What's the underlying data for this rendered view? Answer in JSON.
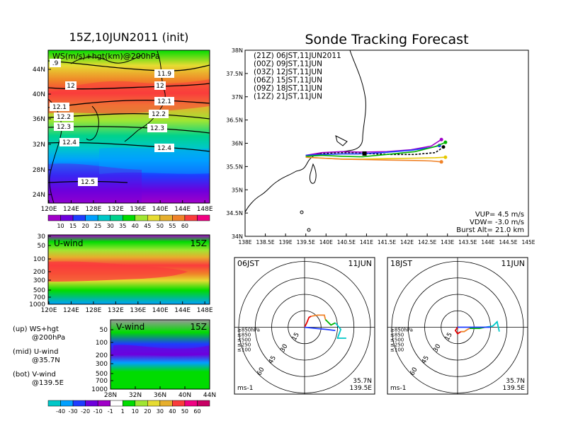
{
  "titles": {
    "left_title": "15Z,10JUN2011 (init)",
    "right_title": "Sonde Tracking Forecast"
  },
  "top_map": {
    "label": "WS(m/s)+hgt(km)@200hPa",
    "lat_ticks": [
      "44N",
      "40N",
      "36N",
      "32N",
      "28N",
      "24N"
    ],
    "lon_ticks": [
      "120E",
      "124E",
      "128E",
      "132E",
      "136E",
      "140E",
      "144E",
      "148E"
    ],
    "contour_labels": [
      "11.9",
      "12",
      "12",
      "12.1",
      "12.1",
      "12.2",
      "12.2",
      "12.3",
      "12.3",
      "12.4",
      "12.4",
      "12.5",
      ".9"
    ],
    "colorbar_labels": [
      "10",
      "15",
      "20",
      "25",
      "30",
      "35",
      "40",
      "45",
      "50",
      "55",
      "60"
    ],
    "colors": [
      "#a000c8",
      "#6e00dc",
      "#1e3cff",
      "#00a0ff",
      "#00c8c8",
      "#00d28c",
      "#00dc00",
      "#a0e632",
      "#e6dc32",
      "#e6af2d",
      "#f08228",
      "#fa3c3c",
      "#f00082"
    ]
  },
  "u_panel": {
    "label": "U-wind",
    "time": "15Z",
    "y_ticks": [
      "30",
      "50",
      "100",
      "200",
      "300",
      "500",
      "700",
      "1000"
    ],
    "x_ticks": [
      "120E",
      "124E",
      "128E",
      "132E",
      "136E",
      "140E",
      "144E",
      "148E"
    ]
  },
  "v_panel": {
    "label": "V-wind",
    "time": "15Z",
    "y_ticks": [
      "50",
      "100",
      "200",
      "300",
      "500",
      "700",
      "1000"
    ],
    "x_ticks": [
      "28N",
      "32N",
      "36N",
      "40N",
      "44N"
    ],
    "colorbar_labels": [
      "-40",
      "-30",
      "-20",
      "-10",
      "-1",
      "1",
      "10",
      "20",
      "30",
      "40",
      "50",
      "60"
    ]
  },
  "legend_text": {
    "line1": "(up) WS+hgt",
    "line2": "@200hPa",
    "line3": "(mid) U-wind",
    "line4": "@35.7N",
    "line5": "(bot) V-wind",
    "line6": "@139.5E"
  },
  "track_map": {
    "lat_ticks": [
      "38N",
      "37.5N",
      "37N",
      "36.5N",
      "36N",
      "35.5N",
      "35N",
      "34.5N",
      "34N"
    ],
    "lon_ticks": [
      "138E",
      "138.5E",
      "139E",
      "139.5E",
      "140E",
      "140.5E",
      "141E",
      "141.5E",
      "142E",
      "142.5E",
      "143E",
      "143.5E",
      "144E",
      "144.5E",
      "145E"
    ],
    "launches": [
      {
        "label": "(21Z)  06JST,11JUN2011",
        "color": "#000000"
      },
      {
        "label": "(00Z)  09JST,11JUN",
        "color": "#a000c8"
      },
      {
        "label": "(03Z)  12JST,11JUN",
        "color": "#1e3cff"
      },
      {
        "label": "(06Z)  15JST,11JUN",
        "color": "#00b400"
      },
      {
        "label": "(09Z)  18JST,11JUN",
        "color": "#e6c800"
      },
      {
        "label": "(12Z)  21JST,11JUN",
        "color": "#f08228"
      }
    ],
    "vup": "VUP= 4.5 m/s",
    "vdw": "VDW= -3.0 m/s",
    "burst": "Burst Alt= 21.0 km"
  },
  "hodo_left": {
    "time": "06JST",
    "date": "11JUN",
    "rings": [
      "15",
      "30",
      "45",
      "60"
    ],
    "unit": "ms-1",
    "lat": "35.7N",
    "lon": "139.5E",
    "levels": [
      "≥850hPa",
      "≤850",
      "≤500",
      "≤250",
      "≤100"
    ],
    "level_colors": [
      "#e60000",
      "#f08228",
      "#00b400",
      "#00c8c8",
      "#1e3cff"
    ]
  },
  "hodo_right": {
    "time": "18JST",
    "date": "11JUN",
    "rings": [
      "15",
      "30",
      "45",
      "60"
    ],
    "unit": "ms-1",
    "lat": "35.7N",
    "lon": "139.5E",
    "levels": [
      "≥850hPa",
      "≤850",
      "≤500",
      "≤250",
      "≤100"
    ],
    "level_colors": [
      "#e60000",
      "#f08228",
      "#00b400",
      "#00c8c8",
      "#1e3cff"
    ]
  },
  "chart_data": [
    {
      "type": "heatmap",
      "title": "15Z,10JUN2011 (init)",
      "label": "WS(m/s)+hgt(km)@200hPa",
      "xlim": [
        120,
        149
      ],
      "ylim": [
        22,
        48
      ],
      "colorbar_levels": [
        10,
        15,
        20,
        25,
        30,
        35,
        40,
        45,
        50,
        55,
        60
      ],
      "height_contours_km": [
        11.9,
        12.0,
        12.1,
        12.2,
        12.3,
        12.4,
        12.5
      ]
    },
    {
      "type": "heatmap",
      "label": "U-wind",
      "xlim": [
        120,
        149
      ],
      "y_pressure_hPa": [
        30,
        50,
        100,
        200,
        300,
        500,
        700,
        1000
      ]
    },
    {
      "type": "heatmap",
      "label": "V-wind",
      "xlim": [
        28,
        44
      ],
      "y_pressure_hPa": [
        50,
        100,
        200,
        300,
        500,
        700,
        1000
      ],
      "colorbar_levels": [
        -40,
        -30,
        -20,
        -10,
        -1,
        1,
        10,
        20,
        30,
        40,
        50,
        60
      ]
    },
    {
      "type": "line",
      "title": "Sonde Tracking Forecast",
      "xlim": [
        138,
        145
      ],
      "ylim": [
        34,
        38
      ],
      "series": [
        {
          "name": "(21Z)  06JST,11JUN2011",
          "x": [
            139.5,
            139.8,
            140.3,
            140.8,
            141.0,
            141.6,
            142.2,
            142.7,
            142.9
          ],
          "y": [
            35.72,
            35.77,
            35.8,
            35.8,
            35.78,
            35.76,
            35.76,
            35.8,
            35.92
          ]
        },
        {
          "name": "(00Z)  09JST,11JUN",
          "x": [
            139.5,
            139.9,
            140.4,
            140.9,
            141.5,
            142.1,
            142.6,
            142.85
          ],
          "y": [
            35.74,
            35.8,
            35.82,
            35.81,
            35.82,
            35.86,
            35.94,
            36.08
          ]
        },
        {
          "name": "(03Z)  12JST,11JUN",
          "x": [
            139.5,
            139.9,
            140.4,
            140.8,
            141.4,
            142.1,
            142.6,
            142.8
          ],
          "y": [
            35.74,
            35.76,
            35.77,
            35.77,
            35.8,
            35.85,
            35.91,
            35.95
          ]
        },
        {
          "name": "(06Z)  15JST,11JUN",
          "x": [
            139.5,
            139.9,
            140.4,
            140.9,
            141.5,
            142.2,
            142.7,
            142.95
          ],
          "y": [
            35.72,
            35.74,
            35.72,
            35.71,
            35.76,
            35.82,
            35.93,
            36.02
          ]
        },
        {
          "name": "(09Z)  18JST,11JUN",
          "x": [
            139.5,
            139.9,
            140.4,
            140.9,
            141.5,
            142.2,
            142.7,
            142.95
          ],
          "y": [
            35.7,
            35.68,
            35.66,
            35.66,
            35.67,
            35.68,
            35.69,
            35.7
          ]
        },
        {
          "name": "(12Z)  21JST,11JUN",
          "x": [
            139.5,
            139.9,
            140.4,
            140.9,
            141.5,
            142.2,
            142.6,
            142.85
          ],
          "y": [
            35.7,
            35.68,
            35.66,
            35.65,
            35.64,
            35.63,
            35.62,
            35.6
          ]
        }
      ]
    },
    {
      "type": "line",
      "title": "06JST 11JUN hodograph",
      "rings_ms": [
        15,
        30,
        45,
        60
      ],
      "series": [
        {
          "name": "≥850hPa",
          "u": [
            0,
            2,
            4,
            6
          ],
          "v": [
            0,
            4,
            9,
            10
          ]
        },
        {
          "name": "≤850",
          "u": [
            6,
            12,
            18,
            19
          ],
          "v": [
            10,
            11,
            11,
            7
          ]
        },
        {
          "name": "≤500",
          "u": [
            19,
            24,
            28
          ],
          "v": [
            7,
            2,
            4
          ]
        },
        {
          "name": "≤250",
          "u": [
            28,
            33,
            30,
            38
          ],
          "v": [
            4,
            -2,
            -10,
            -10
          ]
        },
        {
          "name": "≤100",
          "u": [
            0,
            10,
            20,
            28
          ],
          "v": [
            0,
            -1,
            -2,
            -3
          ]
        }
      ]
    },
    {
      "type": "line",
      "title": "18JST 11JUN hodograph",
      "rings_ms": [
        15,
        30,
        45,
        60
      ],
      "series": [
        {
          "name": "≥850hPa",
          "u": [
            0,
            -2,
            0,
            3
          ],
          "v": [
            0,
            -3,
            -6,
            -4
          ]
        },
        {
          "name": "≤850",
          "u": [
            3,
            6,
            9,
            11
          ],
          "v": [
            -4,
            -4,
            -2,
            -1
          ]
        },
        {
          "name": "≤500",
          "u": [
            11,
            20,
            25
          ],
          "v": [
            -1,
            -1,
            0
          ]
        },
        {
          "name": "≤250",
          "u": [
            25,
            32,
            36,
            38
          ],
          "v": [
            0,
            1,
            5,
            -4
          ]
        },
        {
          "name": "≤100",
          "u": [
            0,
            12,
            24,
            30
          ],
          "v": [
            0,
            0,
            0,
            0
          ]
        }
      ]
    }
  ]
}
